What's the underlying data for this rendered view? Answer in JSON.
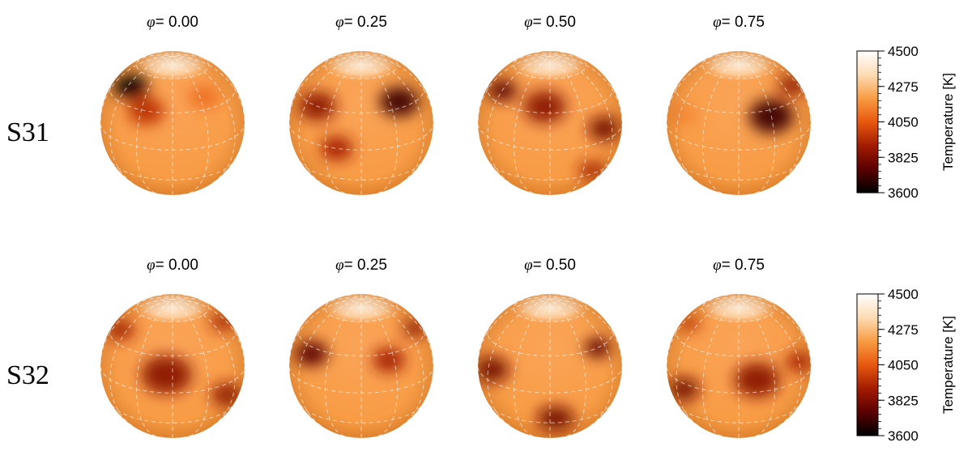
{
  "chart_data": [
    {
      "type": "heatmap",
      "name": "S31",
      "row_label": "S31",
      "phases": [
        {
          "label": "0.00",
          "spots": [
            {
              "lon": -55,
              "lat": 45,
              "temp": 3600,
              "size": 0.9
            },
            {
              "lon": -25,
              "lat": 30,
              "temp": 3950,
              "size": 0.9
            },
            {
              "lon": 35,
              "lat": 40,
              "temp": 4100,
              "size": 0.8
            }
          ]
        },
        {
          "label": "0.25",
          "spots": [
            {
              "lon": -45,
              "lat": 30,
              "temp": 3850,
              "size": 1.0
            },
            {
              "lon": -20,
              "lat": 0,
              "temp": 3900,
              "size": 0.8
            },
            {
              "lon": 40,
              "lat": 35,
              "temp": 3700,
              "size": 1.0
            }
          ]
        },
        {
          "label": "0.50",
          "spots": [
            {
              "lon": -60,
              "lat": 40,
              "temp": 3750,
              "size": 0.8
            },
            {
              "lon": -5,
              "lat": 35,
              "temp": 3850,
              "size": 1.0
            },
            {
              "lon": 50,
              "lat": 10,
              "temp": 3800,
              "size": 0.9
            },
            {
              "lon": 40,
              "lat": -25,
              "temp": 3900,
              "size": 0.7
            }
          ]
        },
        {
          "label": "0.75",
          "spots": [
            {
              "lon": 30,
              "lat": 25,
              "temp": 3700,
              "size": 1.1
            },
            {
              "lon": -55,
              "lat": 20,
              "temp": 4150,
              "size": 0.8
            },
            {
              "lon": 75,
              "lat": 40,
              "temp": 3850,
              "size": 0.8
            }
          ]
        }
      ],
      "colorbar": {
        "title": "Temperature [K]",
        "range": [
          3600,
          4500
        ],
        "ticks": [
          "4500",
          "4275",
          "4050",
          "3825",
          "3600"
        ]
      }
    },
    {
      "type": "heatmap",
      "name": "S32",
      "row_label": "S32",
      "phases": [
        {
          "label": "0.00",
          "spots": [
            {
              "lon": -70,
              "lat": 40,
              "temp": 3900,
              "size": 0.8
            },
            {
              "lon": -5,
              "lat": 15,
              "temp": 3850,
              "size": 1.2
            },
            {
              "lon": 50,
              "lat": -10,
              "temp": 3850,
              "size": 0.9
            },
            {
              "lon": 80,
              "lat": 45,
              "temp": 3900,
              "size": 0.7
            }
          ]
        },
        {
          "label": "0.25",
          "spots": [
            {
              "lon": -50,
              "lat": 25,
              "temp": 3750,
              "size": 0.9
            },
            {
              "lon": 25,
              "lat": 25,
              "temp": 3900,
              "size": 0.8
            },
            {
              "lon": 75,
              "lat": 40,
              "temp": 3850,
              "size": 0.7
            }
          ]
        },
        {
          "label": "0.50",
          "spots": [
            {
              "lon": -55,
              "lat": 10,
              "temp": 3800,
              "size": 1.0
            },
            {
              "lon": 5,
              "lat": -25,
              "temp": 3800,
              "size": 0.9
            },
            {
              "lon": 50,
              "lat": 30,
              "temp": 3750,
              "size": 0.7
            }
          ]
        },
        {
          "label": "0.75",
          "spots": [
            {
              "lon": -50,
              "lat": -5,
              "temp": 3800,
              "size": 0.9
            },
            {
              "lon": 15,
              "lat": 10,
              "temp": 3850,
              "size": 1.1
            },
            {
              "lon": 60,
              "lat": 15,
              "temp": 3900,
              "size": 0.8
            },
            {
              "lon": -75,
              "lat": 45,
              "temp": 3950,
              "size": 0.6
            }
          ]
        }
      ],
      "colorbar": {
        "title": "Temperature [K]",
        "range": [
          3600,
          4500
        ],
        "ticks": [
          "4500",
          "4275",
          "4050",
          "3825",
          "3600"
        ]
      }
    }
  ],
  "phase_prefix": "φ",
  "phase_sep": "= ",
  "colors": {
    "photosphere": "#F89C44",
    "polar_cap": "#FFF1DF",
    "colormap": [
      "#000000",
      "#5a0000",
      "#a31c00",
      "#e8580f",
      "#f89c44",
      "#fddcb4",
      "#ffffff"
    ],
    "grid": "#ffffff"
  }
}
